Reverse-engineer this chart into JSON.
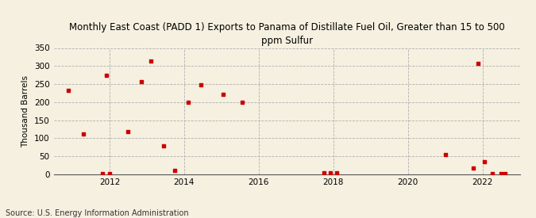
{
  "title": "Monthly East Coast (PADD 1) Exports to Panama of Distillate Fuel Oil, Greater than 15 to 500\nppm Sulfur",
  "ylabel": "Thousand Barrels",
  "source": "Source: U.S. Energy Information Administration",
  "background_color": "#f5f0e0",
  "marker_color": "#cc0000",
  "xlim": [
    2010.5,
    2023.0
  ],
  "ylim": [
    0,
    350
  ],
  "yticks": [
    0,
    50,
    100,
    150,
    200,
    250,
    300,
    350
  ],
  "xticks": [
    2012,
    2014,
    2016,
    2018,
    2020,
    2022
  ],
  "data_x": [
    2010.9,
    2011.3,
    2011.8,
    2011.92,
    2012.0,
    2012.5,
    2012.85,
    2013.1,
    2013.45,
    2013.75,
    2014.1,
    2014.45,
    2015.05,
    2015.55,
    2017.75,
    2017.92,
    2018.08,
    2021.0,
    2021.75,
    2021.88,
    2022.05,
    2022.25,
    2022.5,
    2022.6
  ],
  "data_y": [
    232,
    113,
    2,
    275,
    3,
    119,
    256,
    313,
    79,
    11,
    200,
    247,
    222,
    200,
    4,
    4,
    4,
    55,
    18,
    307,
    36,
    3,
    2,
    3
  ],
  "title_fontsize": 8.5,
  "ylabel_fontsize": 7.5,
  "tick_fontsize": 7.5,
  "source_fontsize": 7
}
